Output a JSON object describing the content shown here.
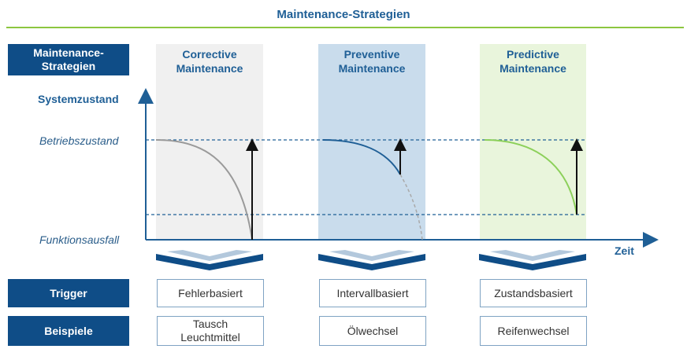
{
  "title": "Maintenance-Strategien",
  "row_labels": {
    "strategies": "Maintenance-\nStrategien",
    "trigger": "Trigger",
    "examples": "Beispiele"
  },
  "strategies": [
    {
      "name": "Corrective\nMaintenance",
      "trigger": "Fehlerbasiert",
      "example": "Tausch\nLeuchtmittel",
      "curve_color": "#9a9a9a",
      "column_color": "#f0f0f0"
    },
    {
      "name": "Preventive\nMaintenance",
      "trigger": "Intervallbasiert",
      "example": "Ölwechsel",
      "curve_color": "#1f5f96",
      "column_color": "#c9dcec"
    },
    {
      "name": "Predictive\nMaintenance",
      "trigger": "Zustandsbasiert",
      "example": "Reifenwechsel",
      "curve_color": "#8cd05a",
      "column_color": "#e9f5dc"
    }
  ],
  "axes": {
    "y_title": "Systemzustand",
    "x_title": "Zeit",
    "level_high": "Betriebszustand",
    "level_low": "Funktionsausfall"
  },
  "colors": {
    "accent": "#0f4d87",
    "title": "#1f5f96",
    "divider": "#8cc63f",
    "chevron_top": "#b3c8dc"
  }
}
